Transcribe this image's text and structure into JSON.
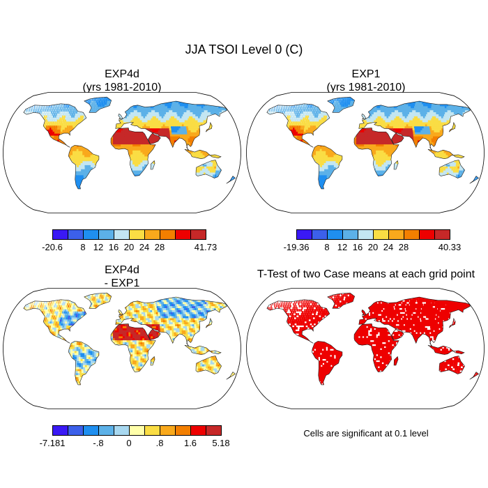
{
  "title": "JJA TSOI Level 0 (C)",
  "panels": {
    "top_left": {
      "line1": "EXP4d",
      "line2": "(yrs 1981-2010)"
    },
    "top_right": {
      "line1": "EXP1",
      "line2": "(yrs 1981-2010)"
    },
    "bottom_left": {
      "line1": "EXP4d",
      "line2": "- EXP1"
    },
    "bottom_right": {
      "line1": "T-Test of two Case means at each grid point"
    }
  },
  "significance_note": "Cells are significant at 0.1 level",
  "chart_data": [
    {
      "type": "heatmap",
      "title": "EXP4d (yrs 1981-2010)",
      "variable": "JJA TSOI Level 0 (C)",
      "map_projection": "robinson",
      "colorbar": {
        "labels": [
          "-20.6",
          "",
          "8",
          "12",
          "16",
          "20",
          "24",
          "28",
          "",
          "41.73"
        ],
        "min": -20.6,
        "max": 41.73,
        "colors": [
          "#3a19f5",
          "#3c60ea",
          "#1f8ff0",
          "#5cb1e8",
          "#c3e6f2",
          "#fadd44",
          "#f9a91c",
          "#f37f00",
          "#ee0000",
          "#c62828"
        ]
      }
    },
    {
      "type": "heatmap",
      "title": "EXP1 (yrs 1981-2010)",
      "variable": "JJA TSOI Level 0 (C)",
      "map_projection": "robinson",
      "colorbar": {
        "labels": [
          "-19.36",
          "",
          "8",
          "12",
          "16",
          "20",
          "24",
          "28",
          "",
          "40.33"
        ],
        "min": -19.36,
        "max": 40.33,
        "colors": [
          "#3a19f5",
          "#3c60ea",
          "#1f8ff0",
          "#5cb1e8",
          "#c3e6f2",
          "#fadd44",
          "#f9a91c",
          "#f37f00",
          "#ee0000",
          "#c62828"
        ]
      }
    },
    {
      "type": "heatmap",
      "title": "EXP4d - EXP1",
      "variable": "JJA TSOI Level 0 (C) difference",
      "map_projection": "robinson",
      "colorbar": {
        "labels": [
          "-7.181",
          "",
          "",
          "-.8",
          "",
          "0",
          "",
          ".8",
          "",
          "1.6",
          "5.18"
        ],
        "min": -7.181,
        "max": 5.18,
        "colors": [
          "#3a19f5",
          "#3c60ea",
          "#1f8ff0",
          "#5cb1e8",
          "#a8d8f0",
          "#ffffaa",
          "#fadd44",
          "#f9a91c",
          "#f37f00",
          "#ee0000",
          "#c62828"
        ]
      }
    },
    {
      "type": "heatmap",
      "title": "T-Test of two Case means at each grid point",
      "map_projection": "robinson",
      "significance_level": 0.1,
      "significant_color": "#ee0000"
    }
  ]
}
